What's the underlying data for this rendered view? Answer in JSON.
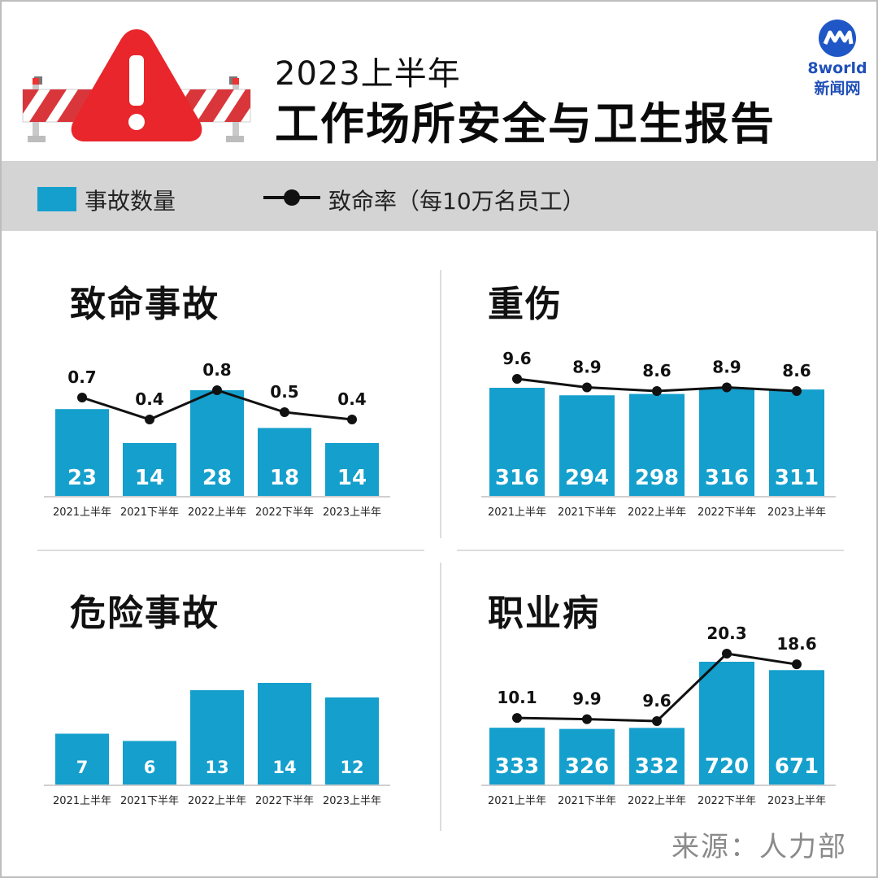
{
  "header": {
    "title_line1": "2023上半年",
    "title_line2": "工作场所安全与卫生报告",
    "logo_line1": "8world",
    "logo_line2": "新闻网"
  },
  "legend": {
    "bar_label": "事故数量",
    "line_label": "致命率（每10万名员工）"
  },
  "source": "来源：人力部",
  "colors": {
    "bar": "#149fcc",
    "line": "#111111",
    "warning": "#e8262b",
    "stripe": "#d9363b"
  },
  "chart_data": [
    {
      "id": "fatal",
      "title": "致命事故",
      "type": "bar",
      "categories": [
        "2021上半年",
        "2021下半年",
        "2022上半年",
        "2022下半年",
        "2023上半年"
      ],
      "series": [
        {
          "name": "事故数量",
          "type": "bar",
          "values": [
            23,
            14,
            28,
            18,
            14
          ]
        },
        {
          "name": "致命率（每10万名员工）",
          "type": "line",
          "values": [
            0.7,
            0.4,
            0.8,
            0.5,
            0.4
          ]
        }
      ]
    },
    {
      "id": "serious",
      "title": "重伤",
      "type": "bar",
      "categories": [
        "2021上半年",
        "2021下半年",
        "2022上半年",
        "2022下半年",
        "2023上半年"
      ],
      "series": [
        {
          "name": "事故数量",
          "type": "bar",
          "values": [
            316,
            294,
            298,
            316,
            311
          ]
        },
        {
          "name": "致命率（每10万名员工）",
          "type": "line",
          "values": [
            9.6,
            8.9,
            8.6,
            8.9,
            8.6
          ]
        }
      ]
    },
    {
      "id": "dangerous",
      "title": "危险事故",
      "type": "bar",
      "categories": [
        "2021上半年",
        "2021下半年",
        "2022上半年",
        "2022下半年",
        "2023上半年"
      ],
      "series": [
        {
          "name": "事故数量",
          "type": "bar",
          "values": [
            7,
            6,
            13,
            14,
            12
          ]
        }
      ]
    },
    {
      "id": "occupational",
      "title": "职业病",
      "type": "bar",
      "categories": [
        "2021上半年",
        "2021下半年",
        "2022上半年",
        "2022下半年",
        "2023上半年"
      ],
      "series": [
        {
          "name": "事故数量",
          "type": "bar",
          "values": [
            333,
            326,
            332,
            720,
            671
          ]
        },
        {
          "name": "致命率（每10万名员工）",
          "type": "line",
          "values": [
            10.1,
            9.9,
            9.6,
            20.3,
            18.6
          ]
        }
      ]
    }
  ]
}
